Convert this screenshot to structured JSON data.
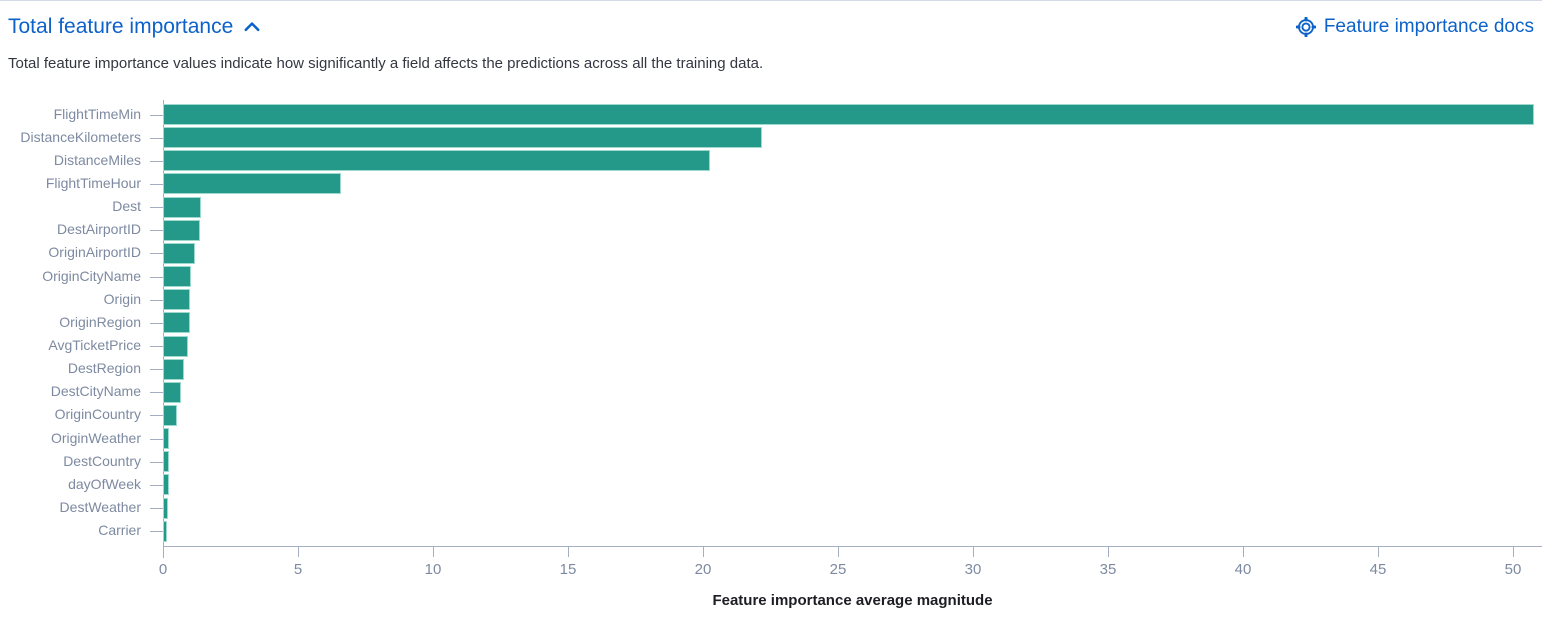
{
  "header": {
    "title": "Total feature importance",
    "docs_link_label": "Feature importance docs"
  },
  "description": "Total feature importance values indicate how significantly a field affects the predictions across all the training data.",
  "colors": {
    "link_blue": "#0d62c9",
    "bar_fill": "#249889",
    "bar_border": "#9ed9cd",
    "axis_line": "#a5aec0",
    "tick_label_text": "#7d8aa1",
    "description_text": "#343741",
    "axis_title_text": "#1d1e24"
  },
  "chart_data": {
    "type": "bar",
    "orientation": "horizontal",
    "title": "Total feature importance",
    "xlabel": "Feature importance average magnitude",
    "ylabel": "",
    "xticks": [
      0,
      5,
      10,
      15,
      20,
      25,
      30,
      35,
      40,
      45,
      50
    ],
    "xlim": [
      0,
      51
    ],
    "grid": false,
    "legend": "none",
    "categories": [
      "FlightTimeMin",
      "DistanceKilometers",
      "DistanceMiles",
      "FlightTimeHour",
      "Dest",
      "DestAirportID",
      "OriginAirportID",
      "OriginCityName",
      "Origin",
      "OriginRegion",
      "AvgTicketPrice",
      "DestRegion",
      "DestCityName",
      "OriginCountry",
      "OriginWeather",
      "DestCountry",
      "dayOfWeek",
      "DestWeather",
      "Carrier"
    ],
    "values": [
      50.7,
      22.1,
      20.2,
      6.5,
      1.35,
      1.3,
      1.1,
      0.97,
      0.94,
      0.91,
      0.86,
      0.7,
      0.6,
      0.43,
      0.16,
      0.15,
      0.14,
      0.11,
      0.06
    ]
  }
}
